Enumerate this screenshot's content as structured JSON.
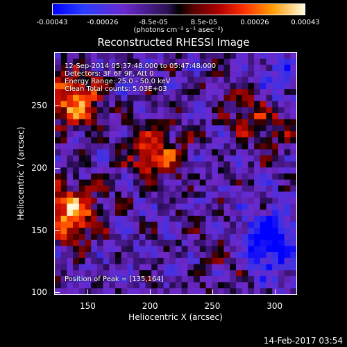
{
  "colorbar": {
    "tick_labels": [
      "-0.00043",
      "-0.00026",
      "-8.5e-05",
      "8.5e-05",
      "0.00026",
      "0.00043"
    ],
    "tick_values": [
      -0.00043,
      -0.00026,
      -8.5e-05,
      8.5e-05,
      0.00026,
      0.00043
    ],
    "range": [
      -0.00043,
      0.00043
    ],
    "unit": "(photons cm⁻² s⁻¹ asec⁻²)",
    "colors": [
      "#0000ff",
      "#6a2ad0",
      "#000000",
      "#b00000",
      "#ff9a00",
      "#fffbe0"
    ]
  },
  "chart_data": {
    "type": "heatmap",
    "title": "Reconstructed RHESSI Image",
    "xlabel": "Heliocentric X (arcsec)",
    "ylabel": "Heliocentric Y (arcsec)",
    "xlim": [
      123,
      318
    ],
    "ylim": [
      98,
      293
    ],
    "x_ticks": [
      "150",
      "200",
      "250",
      "300"
    ],
    "x_tick_values": [
      150,
      200,
      250,
      300
    ],
    "y_ticks": [
      "100",
      "150",
      "200",
      "250"
    ],
    "y_tick_values": [
      100,
      150,
      200,
      250
    ],
    "peak": [
      135,
      164
    ],
    "hotspots": [
      {
        "x": 135,
        "y": 164,
        "value": 0.00043
      },
      {
        "x": 138,
        "y": 255,
        "value": 0.00038
      },
      {
        "x": 205,
        "y": 210,
        "value": 0.0003
      },
      {
        "x": 280,
        "y": 250,
        "value": 0.0002
      },
      {
        "x": 300,
        "y": 235,
        "value": 0.00015
      },
      {
        "x": 265,
        "y": 130,
        "value": 0.00012
      }
    ],
    "coldspots": [
      {
        "x": 295,
        "y": 140,
        "value": -0.00043
      },
      {
        "x": 300,
        "y": 265,
        "value": -0.0002
      }
    ]
  },
  "info": {
    "line1": "12-Sep-2014 05:37:48.000 to 05:47:48.000",
    "line2": "Detectors: 3F 6F 9F, Att 0",
    "line3": "Energy Range: 25.0 - 50.0 keV",
    "line4": "Clean     Total counts: 5.03E+03",
    "peak_text": "Position of Peak = [135,164]"
  },
  "timestamp": "14-Feb-2017 03:54"
}
